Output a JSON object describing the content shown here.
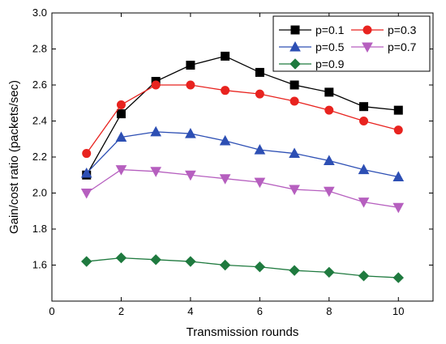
{
  "chart_data": {
    "type": "line",
    "title": "",
    "xlabel": "Transmission rounds",
    "ylabel": "Gain/cost ratio (packets/sec)",
    "xlim": [
      0,
      11
    ],
    "ylim": [
      1.4,
      3.0
    ],
    "xticks": [
      "0",
      "2",
      "4",
      "6",
      "8",
      "10"
    ],
    "xtick_values": [
      0,
      2,
      4,
      6,
      8,
      10
    ],
    "yticks": [
      "1.6",
      "1.8",
      "2.0",
      "2.2",
      "2.4",
      "2.6",
      "2.8",
      "3.0"
    ],
    "ytick_values": [
      1.6,
      1.8,
      2.0,
      2.2,
      2.4,
      2.6,
      2.8,
      3.0
    ],
    "grid": false,
    "legend_position": "top-right",
    "x": [
      1,
      2,
      3,
      4,
      5,
      6,
      7,
      8,
      9,
      10
    ],
    "series": [
      {
        "name": "p=0.1",
        "color": "#000000",
        "marker": "square",
        "values": [
          2.1,
          2.44,
          2.62,
          2.71,
          2.76,
          2.67,
          2.6,
          2.56,
          2.48,
          2.46
        ]
      },
      {
        "name": "p=0.3",
        "color": "#e8231f",
        "marker": "circle",
        "values": [
          2.22,
          2.49,
          2.6,
          2.6,
          2.57,
          2.55,
          2.51,
          2.46,
          2.4,
          2.35
        ]
      },
      {
        "name": "p=0.5",
        "color": "#2d4fb4",
        "marker": "triangle-up",
        "values": [
          2.11,
          2.31,
          2.34,
          2.33,
          2.29,
          2.24,
          2.22,
          2.18,
          2.13,
          2.09
        ]
      },
      {
        "name": "p=0.7",
        "color": "#b65fbf",
        "marker": "triangle-down",
        "values": [
          2.0,
          2.13,
          2.12,
          2.1,
          2.08,
          2.06,
          2.02,
          2.01,
          1.95,
          1.92
        ]
      },
      {
        "name": "p=0.9",
        "color": "#1f7a3f",
        "marker": "diamond",
        "values": [
          1.62,
          1.64,
          1.63,
          1.62,
          1.6,
          1.59,
          1.57,
          1.56,
          1.54,
          1.53
        ]
      }
    ]
  }
}
